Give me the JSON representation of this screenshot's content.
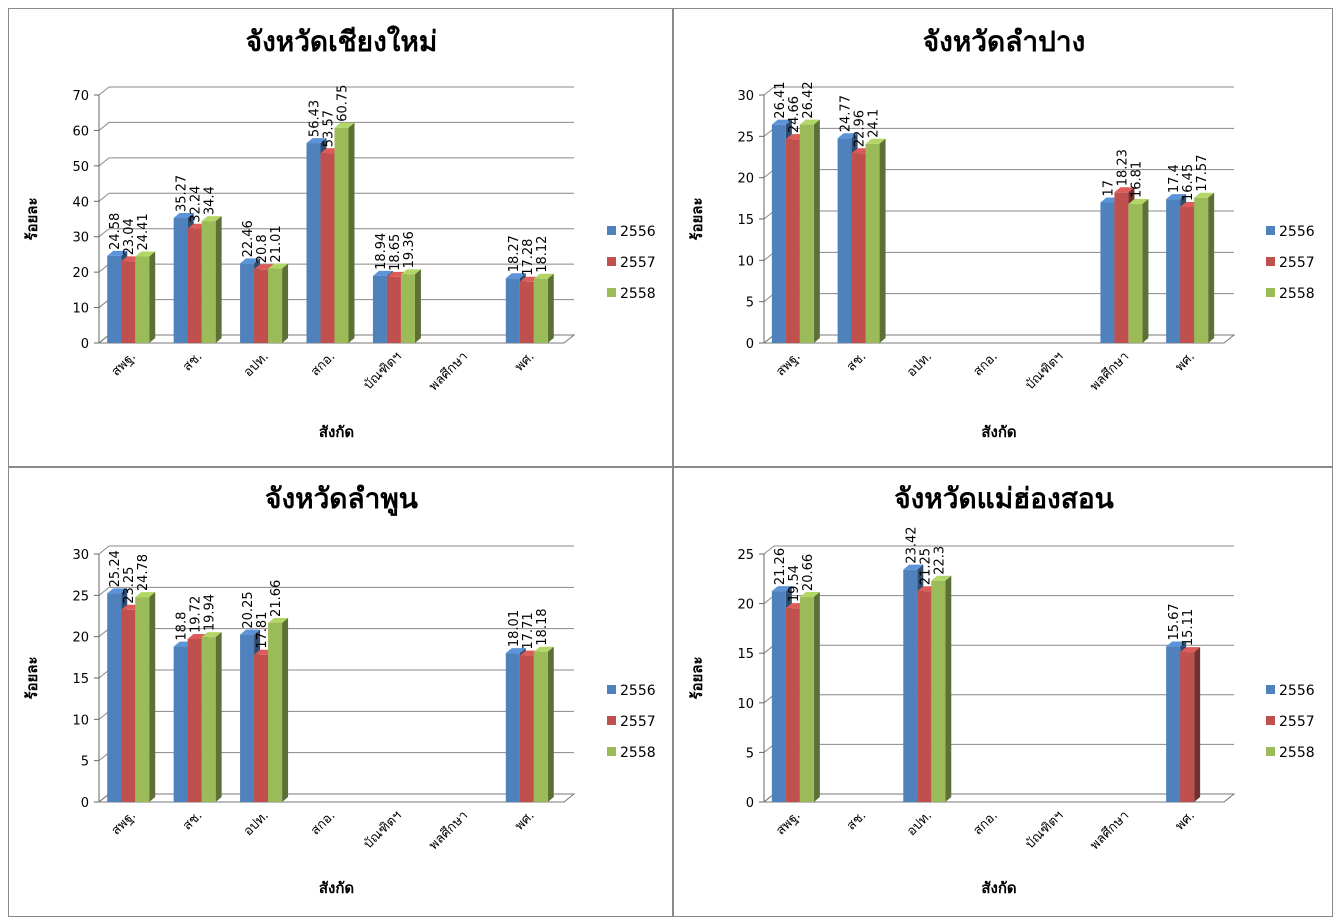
{
  "chart_data": [
    {
      "type": "bar",
      "title": "จังหวัดเชียงใหม่",
      "xlabel": "สังกัด",
      "ylabel": "ร้อยละ",
      "categories": [
        "สพฐ.",
        "สช.",
        "อปท.",
        "สกอ.",
        "บัณฑิตฯ",
        "พลศึกษา",
        "พศ."
      ],
      "ylim": [
        0,
        70
      ],
      "yticks": [
        "0",
        "10",
        "20",
        "30",
        "40",
        "50",
        "60",
        "70"
      ],
      "legend_position": "right",
      "series": [
        {
          "name": "2556",
          "color": "#4f81bd",
          "values": [
            24.58,
            35.27,
            22.46,
            56.43,
            18.94,
            null,
            18.27
          ]
        },
        {
          "name": "2557",
          "color": "#c0504d",
          "values": [
            23.04,
            32.24,
            20.8,
            53.57,
            18.65,
            null,
            17.28
          ]
        },
        {
          "name": "2558",
          "color": "#9bbb59",
          "values": [
            24.41,
            34.4,
            21.01,
            60.75,
            19.36,
            null,
            18.12
          ]
        }
      ]
    },
    {
      "type": "bar",
      "title": "จังหวัดลำปาง",
      "xlabel": "สังกัด",
      "ylabel": "ร้อยละ",
      "categories": [
        "สพฐ.",
        "สช.",
        "อปท.",
        "สกอ.",
        "บัณฑิตฯ",
        "พลศึกษา",
        "พศ."
      ],
      "ylim": [
        0,
        30
      ],
      "yticks": [
        "0",
        "5",
        "10",
        "15",
        "20",
        "25",
        "30"
      ],
      "legend_position": "right",
      "series": [
        {
          "name": "2556",
          "color": "#4f81bd",
          "values": [
            26.41,
            24.77,
            null,
            null,
            null,
            17,
            17.4
          ]
        },
        {
          "name": "2557",
          "color": "#c0504d",
          "values": [
            24.66,
            22.96,
            null,
            null,
            null,
            18.23,
            16.45
          ]
        },
        {
          "name": "2558",
          "color": "#9bbb59",
          "values": [
            26.42,
            24.1,
            null,
            null,
            null,
            16.81,
            17.57
          ]
        }
      ]
    },
    {
      "type": "bar",
      "title": "จังหวัดลำพูน",
      "xlabel": "สังกัด",
      "ylabel": "ร้อยละ",
      "categories": [
        "สพฐ.",
        "สช.",
        "อปท.",
        "สกอ.",
        "บัณฑิตฯ",
        "พลศึกษา",
        "พศ."
      ],
      "ylim": [
        0,
        30
      ],
      "yticks": [
        "0",
        "5",
        "10",
        "15",
        "20",
        "25",
        "30"
      ],
      "legend_position": "right",
      "series": [
        {
          "name": "2556",
          "color": "#4f81bd",
          "values": [
            25.24,
            18.8,
            20.25,
            null,
            null,
            null,
            18.01
          ]
        },
        {
          "name": "2557",
          "color": "#c0504d",
          "values": [
            23.25,
            19.72,
            17.81,
            null,
            null,
            null,
            17.71
          ]
        },
        {
          "name": "2558",
          "color": "#9bbb59",
          "values": [
            24.78,
            19.94,
            21.66,
            null,
            null,
            null,
            18.18
          ]
        }
      ]
    },
    {
      "type": "bar",
      "title": "จังหวัดแม่ฮ่องสอน",
      "xlabel": "สังกัด",
      "ylabel": "ร้อยละ",
      "categories": [
        "สพฐ.",
        "สช.",
        "อปท.",
        "สกอ.",
        "บัณฑิตฯ",
        "พลศึกษา",
        "พศ."
      ],
      "ylim": [
        0,
        25
      ],
      "yticks": [
        "0",
        "5",
        "10",
        "15",
        "20",
        "25"
      ],
      "legend_position": "right",
      "series": [
        {
          "name": "2556",
          "color": "#4f81bd",
          "values": [
            21.26,
            null,
            23.42,
            null,
            null,
            null,
            15.67
          ]
        },
        {
          "name": "2557",
          "color": "#c0504d",
          "values": [
            19.54,
            null,
            21.25,
            null,
            null,
            null,
            15.11
          ]
        },
        {
          "name": "2558",
          "color": "#9bbb59",
          "values": [
            20.66,
            null,
            22.3,
            null,
            null,
            null,
            null
          ]
        }
      ]
    }
  ]
}
